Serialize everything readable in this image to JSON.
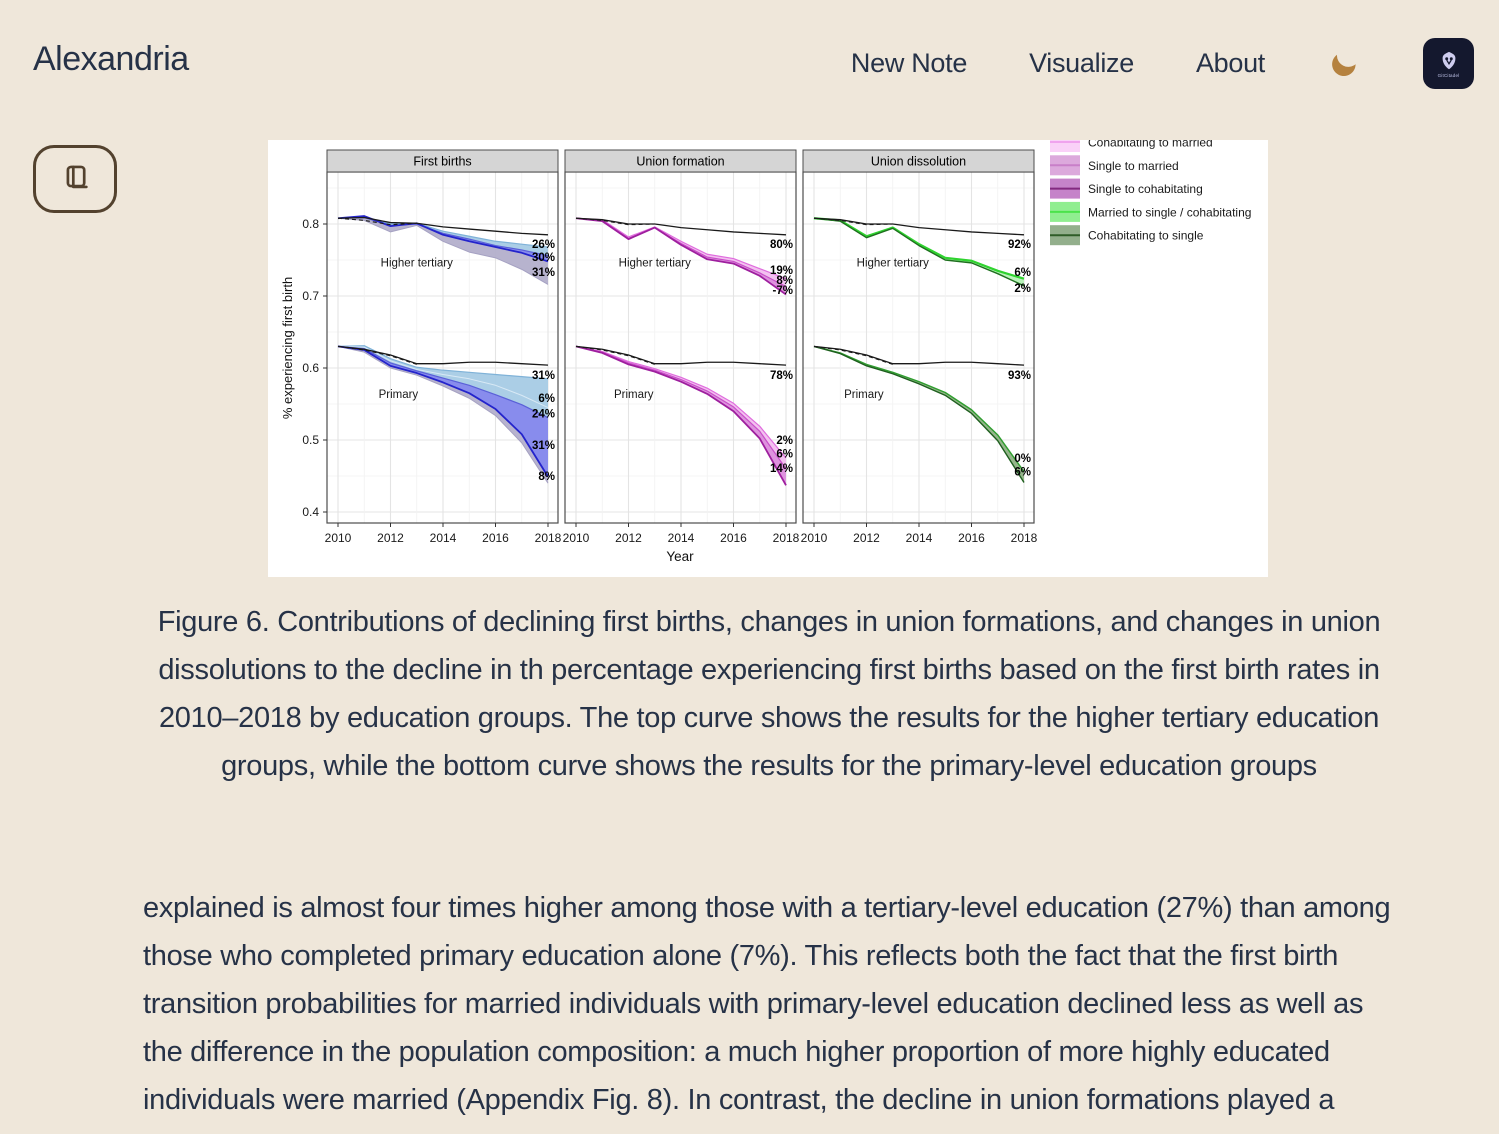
{
  "page": {
    "background": "#EFE7DA",
    "text_color": "#263247"
  },
  "header": {
    "brand": "Alexandria",
    "nav": [
      {
        "label": "New Note"
      },
      {
        "label": "Visualize"
      },
      {
        "label": "About"
      }
    ],
    "moon_color": "#B5823F",
    "logo_text": "GitCitadel",
    "logo_bg": "#14182E"
  },
  "reader_button": {
    "border_color": "#53422E"
  },
  "chart_data": {
    "type": "line",
    "title": "",
    "xlabel": "Year",
    "ylabel": "% experiencing first birth",
    "x_ticks": [
      2010,
      2012,
      2014,
      2016,
      2018
    ],
    "y_ticks": [
      "0.8",
      "0.7",
      "0.6",
      "0.5",
      "0.4"
    ],
    "y_tick_values": [
      0.8,
      0.7,
      0.6,
      0.5,
      0.4
    ],
    "x_range": [
      2010,
      2018
    ],
    "ylim": [
      0.385,
      0.872
    ],
    "grid": true,
    "panels": [
      {
        "title": "First births",
        "groups": [
          {
            "name": "Higher tertiary",
            "name_pos": [
              2013.0,
              0.741
            ],
            "curves": [
              {
                "id": "grayBot",
                "color": "#A5A1C2",
                "w": 1.0,
                "pts": [
                  0.808,
                  0.805,
                  0.789,
                  0.798,
                  0.776,
                  0.761,
                  0.753,
                  0.737,
                  0.716
                ]
              },
              {
                "id": "cyanTop",
                "color": "#7FB2D8",
                "w": 1.2,
                "pts": [
                  0.808,
                  0.81,
                  0.8,
                  0.801,
                  0.79,
                  0.783,
                  0.776,
                  0.772,
                  0.768
                ]
              },
              {
                "id": "slateTop",
                "color": "#5A60D8",
                "w": 1.2,
                "pts": [
                  0.808,
                  0.809,
                  0.798,
                  0.8,
                  0.787,
                  0.779,
                  0.77,
                  0.764,
                  0.756
                ]
              },
              {
                "id": "obs",
                "color": "#2424CC",
                "w": 1.8,
                "pts": [
                  0.808,
                  0.811,
                  0.797,
                  0.801,
                  0.785,
                  0.776,
                  0.768,
                  0.76,
                  0.748
                ]
              },
              {
                "id": "black",
                "color": "#1A1A1A",
                "w": 1.3,
                "pts": [
                  0.808,
                  0.809,
                  0.802,
                  0.801,
                  0.796,
                  0.793,
                  0.79,
                  0.787,
                  0.785
                ]
              },
              {
                "id": "dashed",
                "color": "#1A1A1A",
                "w": 1.1,
                "dash": "4 3",
                "pts": [
                  0.808,
                  0.805,
                  0.799,
                  0.801
                ]
              }
            ],
            "bands": [
              {
                "upper": "cyanTop",
                "lower": "slateTop",
                "fill": "#A6CBE5"
              },
              {
                "upper": "slateTop",
                "lower": "obs",
                "fill": "#8286EC"
              },
              {
                "upper": "obs",
                "lower": "grayBot",
                "fill": "#B3AFCB"
              }
            ],
            "end_labels": [
              {
                "text": "26%",
                "v": 0.772
              },
              {
                "text": "30%",
                "v": 0.754
              },
              {
                "text": "31%",
                "v": 0.733
              }
            ]
          },
          {
            "name": "Primary",
            "name_pos": [
              2012.3,
              0.558
            ],
            "curves": [
              {
                "id": "grayBot",
                "color": "#A5A1C2",
                "w": 1.0,
                "pts": [
                  0.63,
                  0.622,
                  0.6,
                  0.59,
                  0.575,
                  0.558,
                  0.534,
                  0.496,
                  0.44
                ]
              },
              {
                "id": "cyanTop",
                "color": "#7FB2D8",
                "w": 1.2,
                "pts": [
                  0.63,
                  0.631,
                  0.613,
                  0.601,
                  0.597,
                  0.594,
                  0.591,
                  0.588,
                  0.585
                ]
              },
              {
                "id": "midLine",
                "color": "#D8E9F5",
                "w": 1.0,
                "pts": [
                  0.63,
                  0.629,
                  0.61,
                  0.598,
                  0.591,
                  0.585,
                  0.576,
                  0.562,
                  0.545
                ]
              },
              {
                "id": "slateTop",
                "color": "#5A60D8",
                "w": 1.2,
                "pts": [
                  0.63,
                  0.627,
                  0.607,
                  0.596,
                  0.586,
                  0.576,
                  0.563,
                  0.549,
                  0.531
                ]
              },
              {
                "id": "obs",
                "color": "#2424CC",
                "w": 1.8,
                "pts": [
                  0.63,
                  0.625,
                  0.603,
                  0.593,
                  0.58,
                  0.565,
                  0.543,
                  0.508,
                  0.449
                ]
              },
              {
                "id": "black",
                "color": "#1A1A1A",
                "w": 1.3,
                "pts": [
                  0.63,
                  0.626,
                  0.618,
                  0.606,
                  0.606,
                  0.608,
                  0.608,
                  0.606,
                  0.604
                ]
              },
              {
                "id": "dashed",
                "color": "#1A1A1A",
                "w": 1.1,
                "dash": "4 3",
                "pts": [
                  0.63,
                  0.625,
                  0.617,
                  0.605
                ]
              }
            ],
            "bands": [
              {
                "upper": "cyanTop",
                "lower": "slateTop",
                "fill": "#A6CBE5"
              },
              {
                "upper": "slateTop",
                "lower": "obs",
                "fill": "#8286EC"
              },
              {
                "upper": "obs",
                "lower": "grayBot",
                "fill": "#B3AFCB"
              }
            ],
            "end_labels": [
              {
                "text": "31%",
                "v": 0.59
              },
              {
                "text": "6%",
                "v": 0.558
              },
              {
                "text": "24%",
                "v": 0.537
              },
              {
                "text": "31%",
                "v": 0.493
              },
              {
                "text": "8%",
                "v": 0.45
              }
            ]
          }
        ]
      },
      {
        "title": "Union formation",
        "groups": [
          {
            "name": "Higher tertiary",
            "name_pos": [
              2013.0,
              0.741
            ],
            "curves": [
              {
                "id": "pinkTop",
                "color": "#E06CDE",
                "w": 1.2,
                "pts": [
                  0.808,
                  0.806,
                  0.782,
                  0.796,
                  0.776,
                  0.758,
                  0.752,
                  0.738,
                  0.724
                ]
              },
              {
                "id": "pinkMid",
                "color": "#C94FC9",
                "w": 1.2,
                "pts": [
                  0.808,
                  0.805,
                  0.78,
                  0.795,
                  0.773,
                  0.754,
                  0.748,
                  0.732,
                  0.713
                ]
              },
              {
                "id": "obs",
                "color": "#9E1F9E",
                "w": 1.8,
                "pts": [
                  0.808,
                  0.804,
                  0.779,
                  0.795,
                  0.771,
                  0.751,
                  0.745,
                  0.728,
                  0.702
                ]
              },
              {
                "id": "black",
                "color": "#1A1A1A",
                "w": 1.3,
                "pts": [
                  0.808,
                  0.806,
                  0.8,
                  0.8,
                  0.795,
                  0.792,
                  0.789,
                  0.787,
                  0.785
                ]
              },
              {
                "id": "dashed",
                "color": "#1A1A1A",
                "w": 1.1,
                "dash": "4 3",
                "pts": [
                  0.808,
                  0.805,
                  0.799,
                  0.8
                ]
              }
            ],
            "bands": [
              {
                "upper": "pinkTop",
                "lower": "pinkMid",
                "fill": "#F2BEEF"
              },
              {
                "upper": "pinkMid",
                "lower": "obs",
                "fill": "#DC8CDC"
              }
            ],
            "end_labels": [
              {
                "text": "80%",
                "v": 0.772
              },
              {
                "text": "19%",
                "v": 0.736
              },
              {
                "text": "8%",
                "v": 0.722
              },
              {
                "text": "-7%",
                "v": 0.708
              }
            ]
          },
          {
            "name": "Primary",
            "name_pos": [
              2012.2,
              0.558
            ],
            "curves": [
              {
                "id": "pinkTop",
                "color": "#E06CDE",
                "w": 1.2,
                "pts": [
                  0.63,
                  0.623,
                  0.609,
                  0.599,
                  0.587,
                  0.572,
                  0.551,
                  0.519,
                  0.475
                ]
              },
              {
                "id": "pinkMid",
                "color": "#C94FC9",
                "w": 1.2,
                "pts": [
                  0.63,
                  0.622,
                  0.607,
                  0.597,
                  0.584,
                  0.568,
                  0.546,
                  0.512,
                  0.46
                ]
              },
              {
                "id": "obs",
                "color": "#9E1F9E",
                "w": 1.8,
                "pts": [
                  0.63,
                  0.621,
                  0.605,
                  0.595,
                  0.581,
                  0.564,
                  0.54,
                  0.502,
                  0.437
                ]
              },
              {
                "id": "black",
                "color": "#1A1A1A",
                "w": 1.3,
                "pts": [
                  0.63,
                  0.626,
                  0.618,
                  0.606,
                  0.606,
                  0.608,
                  0.608,
                  0.606,
                  0.604
                ]
              },
              {
                "id": "dashed",
                "color": "#1A1A1A",
                "w": 1.1,
                "dash": "4 3",
                "pts": [
                  0.63,
                  0.625,
                  0.617,
                  0.605
                ]
              }
            ],
            "bands": [
              {
                "upper": "pinkTop",
                "lower": "pinkMid",
                "fill": "#F2BEEF"
              },
              {
                "upper": "pinkMid",
                "lower": "obs",
                "fill": "#DC8CDC"
              }
            ],
            "end_labels": [
              {
                "text": "78%",
                "v": 0.59
              },
              {
                "text": "2%",
                "v": 0.5
              },
              {
                "text": "6%",
                "v": 0.481
              },
              {
                "text": "14%",
                "v": 0.461
              }
            ]
          }
        ]
      },
      {
        "title": "Union dissolution",
        "groups": [
          {
            "name": "Higher tertiary",
            "name_pos": [
              2013.0,
              0.741
            ],
            "curves": [
              {
                "id": "greenTop",
                "color": "#2FD32F",
                "w": 2.2,
                "pts": [
                  0.808,
                  0.805,
                  0.783,
                  0.795,
                  0.772,
                  0.753,
                  0.749,
                  0.735,
                  0.724
                ]
              },
              {
                "id": "obs",
                "color": "#1E701E",
                "w": 1.4,
                "pts": [
                  0.808,
                  0.804,
                  0.781,
                  0.794,
                  0.77,
                  0.75,
                  0.746,
                  0.731,
                  0.714
                ]
              },
              {
                "id": "black",
                "color": "#1A1A1A",
                "w": 1.3,
                "pts": [
                  0.808,
                  0.806,
                  0.8,
                  0.8,
                  0.795,
                  0.792,
                  0.789,
                  0.787,
                  0.785
                ]
              },
              {
                "id": "dashed",
                "color": "#1A1A1A",
                "w": 1.1,
                "dash": "4 3",
                "pts": [
                  0.808,
                  0.805,
                  0.799,
                  0.8
                ]
              }
            ],
            "bands": [
              {
                "upper": "greenTop",
                "lower": "obs",
                "fill": "#B5F2B5"
              }
            ],
            "end_labels": [
              {
                "text": "92%",
                "v": 0.772
              },
              {
                "text": "6%",
                "v": 0.733
              },
              {
                "text": "2%",
                "v": 0.711
              }
            ]
          },
          {
            "name": "Primary",
            "name_pos": [
              2011.9,
              0.558
            ],
            "curves": [
              {
                "id": "greenTop",
                "color": "#2F9E2F",
                "w": 1.4,
                "pts": [
                  0.63,
                  0.621,
                  0.605,
                  0.594,
                  0.581,
                  0.566,
                  0.542,
                  0.507,
                  0.456
                ]
              },
              {
                "id": "obs",
                "color": "#1E5F1E",
                "w": 1.4,
                "pts": [
                  0.63,
                  0.62,
                  0.603,
                  0.592,
                  0.578,
                  0.562,
                  0.537,
                  0.499,
                  0.441
                ]
              },
              {
                "id": "black",
                "color": "#1A1A1A",
                "w": 1.3,
                "pts": [
                  0.63,
                  0.626,
                  0.618,
                  0.606,
                  0.606,
                  0.608,
                  0.608,
                  0.606,
                  0.604
                ]
              },
              {
                "id": "dashed",
                "color": "#1A1A1A",
                "w": 1.1,
                "dash": "4 3",
                "pts": [
                  0.63,
                  0.625,
                  0.617,
                  0.605
                ]
              }
            ],
            "bands": [
              {
                "upper": "greenTop",
                "lower": "obs",
                "fill": "#8FB285"
              }
            ],
            "end_labels": [
              {
                "text": "93%",
                "v": 0.59
              },
              {
                "text": "0%",
                "v": 0.475
              },
              {
                "text": "6%",
                "v": 0.456
              }
            ]
          }
        ]
      }
    ],
    "legend": {
      "position": "top-right",
      "items": [
        {
          "label": "Cohabitating to married",
          "fill": "#FAD1F8",
          "line": "#F0A3EE",
          "clipped": true
        },
        {
          "label": "Single to married",
          "fill": "#DCA9DC",
          "line": "#C87FC8",
          "clipped": false
        },
        {
          "label": "Single to cohabitating",
          "fill": "#C583C9",
          "line": "#82297F",
          "clipped": false
        },
        {
          "label": "Married to single / cohabitating",
          "fill": "#90EE90",
          "line": "#4BE34B",
          "clipped": false
        },
        {
          "label": "Cohabitating to single",
          "fill": "#93AF8C",
          "line": "#2F5D28",
          "clipped": false
        }
      ]
    }
  },
  "caption": "Figure 6. Contributions of declining first births, changes in union formations, and changes in union dissolutions to the decline in th percentage experiencing first births based on the first birth rates in 2010–2018 by education groups. The top curve shows the results for the higher tertiary education groups, while the bottom curve shows the results for the primary-level education groups",
  "body": {
    "paragraph": "explained is almost four times higher among those with a tertiary-level education (27%) than among those who completed primary education alone (7%). This reflects both the fact that the first birth transition probabilities for married individuals with primary-level education declined less as well as the difference in the population composition: a much higher proportion of more highly educated individuals were married (Appendix Fig. 8). In",
    "clipped_line": "contrast, the decline in union formations played a larger role in the decline in first"
  }
}
